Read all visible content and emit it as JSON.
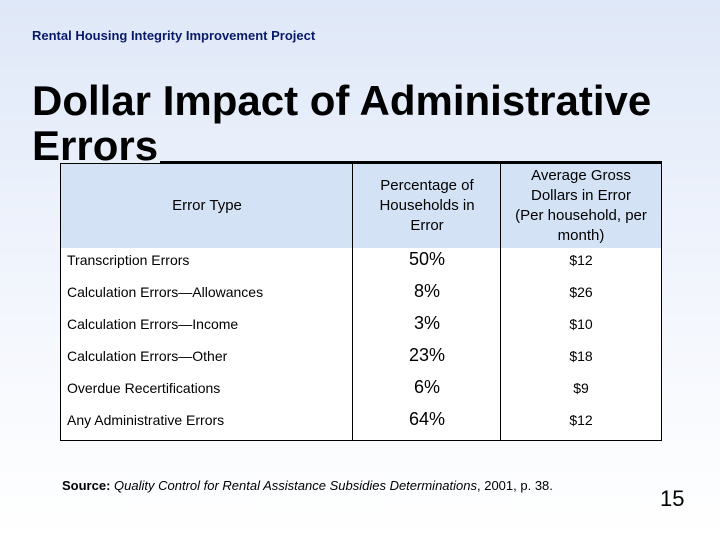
{
  "header": {
    "project": "Rental Housing Integrity Improvement Project",
    "title": "Dollar Impact of Administrative Errors"
  },
  "table": {
    "headers": [
      "Error Type",
      "Percentage of Households in Error",
      {
        "main": "Average Gross Dollars in Error",
        "note": "(Per household, per month)"
      }
    ],
    "rows": [
      [
        "Transcription Errors",
        "50%",
        "$12"
      ],
      [
        "Calculation Errors—Allowances",
        "8%",
        "$26"
      ],
      [
        "Calculation Errors—Income",
        "3%",
        "$10"
      ],
      [
        "Calculation Errors—Other",
        "23%",
        "$18"
      ],
      [
        "Overdue Recertifications",
        "6%",
        "$9"
      ],
      [
        "Any Administrative Errors",
        "64%",
        "$12"
      ]
    ]
  },
  "source": {
    "label": "Source:",
    "title": "Quality Control for Rental Assistance Subsidies Determinations",
    "detail": ", 2001, p. 38."
  },
  "page_number": "15"
}
